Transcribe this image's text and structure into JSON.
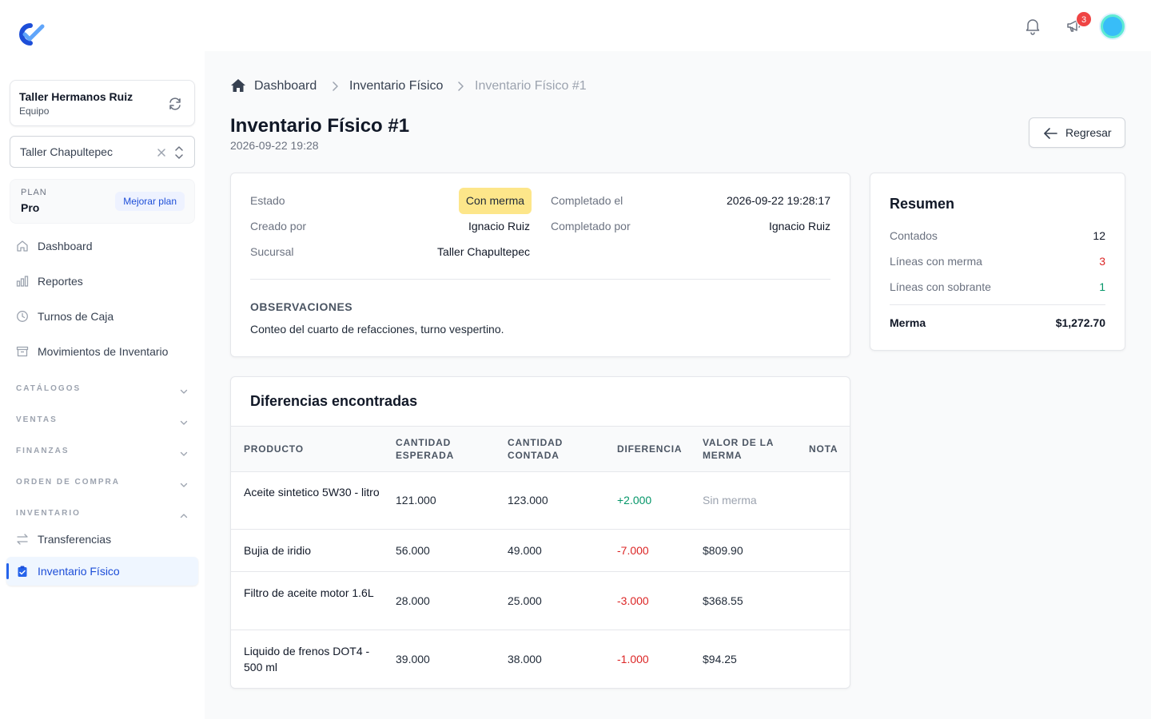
{
  "sidebar": {
    "team": {
      "name": "Taller Hermanos Ruiz",
      "subtitle": "Equipo"
    },
    "branch_select": {
      "value": "Taller Chapultepec"
    },
    "plan": {
      "label": "PLAN",
      "value": "Pro",
      "upgrade_label": "Mejorar plan"
    },
    "nav": [
      {
        "label": "Dashboard",
        "icon": "home-icon"
      },
      {
        "label": "Reportes",
        "icon": "chart-bar-icon"
      },
      {
        "label": "Turnos de Caja",
        "icon": "clock-icon"
      },
      {
        "label": "Movimientos de Inventario",
        "icon": "archive-box-icon"
      }
    ],
    "sections": [
      {
        "label": "CATÁLOGOS",
        "expanded": false
      },
      {
        "label": "VENTAS",
        "expanded": false
      },
      {
        "label": "FINANZAS",
        "expanded": false
      },
      {
        "label": "ORDEN DE COMPRA",
        "expanded": false
      },
      {
        "label": "INVENTARIO",
        "expanded": true
      }
    ],
    "inventory_items": [
      {
        "label": "Transferencias",
        "icon": "arrows-right-left-icon",
        "active": false
      },
      {
        "label": "Inventario Físico",
        "icon": "clipboard-check-icon",
        "active": true
      }
    ]
  },
  "topbar": {
    "notifications_icon": "bell-icon",
    "announcements_icon": "megaphone-icon",
    "announcements_count": "3",
    "avatar": "user-avatar"
  },
  "breadcrumb": {
    "items": [
      "Dashboard",
      "Inventario Físico",
      "Inventario Físico #1"
    ]
  },
  "header": {
    "title": "Inventario Físico #1",
    "date": "2026-09-22 19:28",
    "back_label": "Regresar"
  },
  "details": {
    "estado_label": "Estado",
    "estado_value": "Con merma",
    "creado_por_label": "Creado por",
    "creado_por_value": "Ignacio Ruiz",
    "sucursal_label": "Sucursal",
    "sucursal_value": "Taller Chapultepec",
    "completado_el_label": "Completado el",
    "completado_el_value": "2026-09-22 19:28:17",
    "completado_por_label": "Completado por",
    "completado_por_value": "Ignacio Ruiz",
    "observaciones_title": "OBSERVACIONES",
    "observaciones_text": "Conteo del cuarto de refacciones, turno vespertino."
  },
  "summary": {
    "title": "Resumen",
    "contados_label": "Contados",
    "contados_value": "12",
    "merma_lines_label": "Líneas con merma",
    "merma_lines_value": "3",
    "sobrante_lines_label": "Líneas con sobrante",
    "sobrante_lines_value": "1",
    "merma_label": "Merma",
    "merma_value": "$1,272.70",
    "colors": {
      "negative": "#dc2626",
      "positive": "#059669"
    }
  },
  "differences": {
    "title": "Diferencias encontradas",
    "columns": [
      "PRODUCTO",
      "CANTIDAD ESPERADA",
      "CANTIDAD CONTADA",
      "DIFERENCIA",
      "VALOR DE LA MERMA",
      "NOTA"
    ],
    "rows": [
      {
        "producto": "Aceite sintetico 5W30 - litro",
        "esperada": "121.000",
        "contada": "123.000",
        "diferencia": "+2.000",
        "valor": "Sin merma",
        "nota": ""
      },
      {
        "producto": "Bujia de iridio",
        "esperada": "56.000",
        "contada": "49.000",
        "diferencia": "-7.000",
        "valor": "$809.90",
        "nota": ""
      },
      {
        "producto": "Filtro de aceite motor 1.6L",
        "esperada": "28.000",
        "contada": "25.000",
        "diferencia": "-3.000",
        "valor": "$368.55",
        "nota": ""
      },
      {
        "producto": "Liquido de frenos DOT4 - 500 ml",
        "esperada": "39.000",
        "contada": "38.000",
        "diferencia": "-1.000",
        "valor": "$94.25",
        "nota": ""
      }
    ]
  },
  "colors": {
    "accent": "#2563eb",
    "status_pill_bg": "#fde68a",
    "badge_bg": "#ef4444"
  }
}
